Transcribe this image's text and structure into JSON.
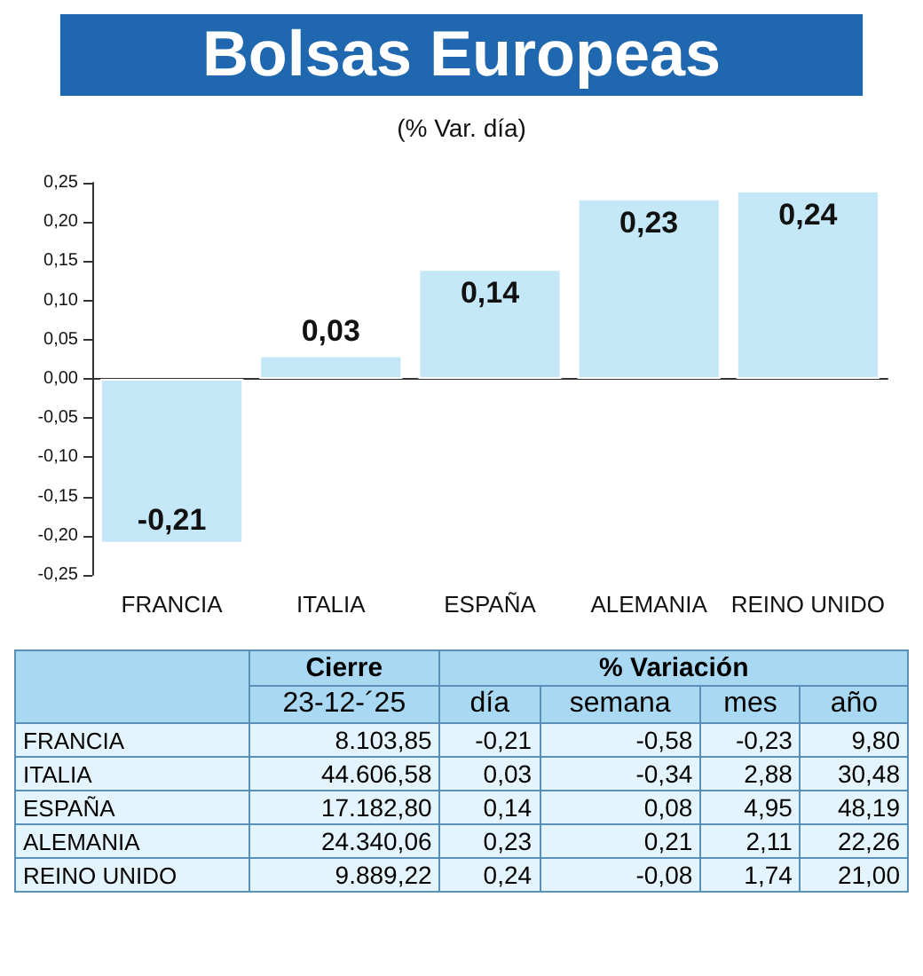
{
  "chart_data": [
    {
      "type": "bar",
      "title": "Bolsas Europeas",
      "subtitle": "(% Var. día)",
      "categories": [
        "FRANCIA",
        "ITALIA",
        "ESPAÑA",
        "ALEMANIA",
        "REINO UNIDO"
      ],
      "values": [
        -0.21,
        0.03,
        0.14,
        0.23,
        0.24
      ],
      "value_labels": [
        "-0,21",
        "0,03",
        "0,14",
        "0,23",
        "0,24"
      ],
      "color": "#c4e8f8",
      "ylim": [
        -0.25,
        0.25
      ],
      "yticks": [
        {
          "value": -0.25,
          "label": "-0,25"
        },
        {
          "value": -0.2,
          "label": "-0,20"
        },
        {
          "value": -0.15,
          "label": "-0,15"
        },
        {
          "value": -0.1,
          "label": "-0,10"
        },
        {
          "value": -0.05,
          "label": "-0,05"
        },
        {
          "value": 0,
          "label": "0,00"
        },
        {
          "value": 0.05,
          "label": "0,05"
        },
        {
          "value": 0.1,
          "label": "0,10"
        },
        {
          "value": 0.15,
          "label": "0,15"
        },
        {
          "value": 0.2,
          "label": "0,20"
        },
        {
          "value": 0.25,
          "label": "0,25"
        }
      ]
    },
    {
      "type": "other",
      "categories": [
        "FRANCIA",
        "ITALIA",
        "ESPAÑA",
        "ALEMANIA",
        "REINO UNIDO"
      ],
      "annotations": [
        "Cierre",
        "% Variación"
      ],
      "series": [
        {
          "name": "23-12-´25",
          "values": [
            8103.85,
            44606.58,
            17182.8,
            24340.06,
            9889.22
          ],
          "value_labels": [
            "8.103,85",
            "44.606,58",
            "17.182,80",
            "24.340,06",
            "9.889,22"
          ]
        },
        {
          "name": "día",
          "values": [
            -0.21,
            0.03,
            0.14,
            0.23,
            0.24
          ],
          "value_labels": [
            "-0,21",
            "0,03",
            "0,14",
            "0,23",
            "0,24"
          ]
        },
        {
          "name": "semana",
          "values": [
            -0.58,
            -0.34,
            0.08,
            0.21,
            -0.08
          ],
          "value_labels": [
            "-0,58",
            "-0,34",
            "0,08",
            "0,21",
            "-0,08"
          ]
        },
        {
          "name": "mes",
          "values": [
            -0.23,
            2.88,
            4.95,
            2.11,
            1.74
          ],
          "value_labels": [
            "-0,23",
            "2,88",
            "4,95",
            "2,11",
            "1,74"
          ]
        },
        {
          "name": "año",
          "values": [
            9.8,
            30.48,
            48.19,
            22.26,
            21
          ],
          "value_labels": [
            "9,80",
            "30,48",
            "48,19",
            "22,26",
            "21,00"
          ]
        }
      ]
    }
  ]
}
